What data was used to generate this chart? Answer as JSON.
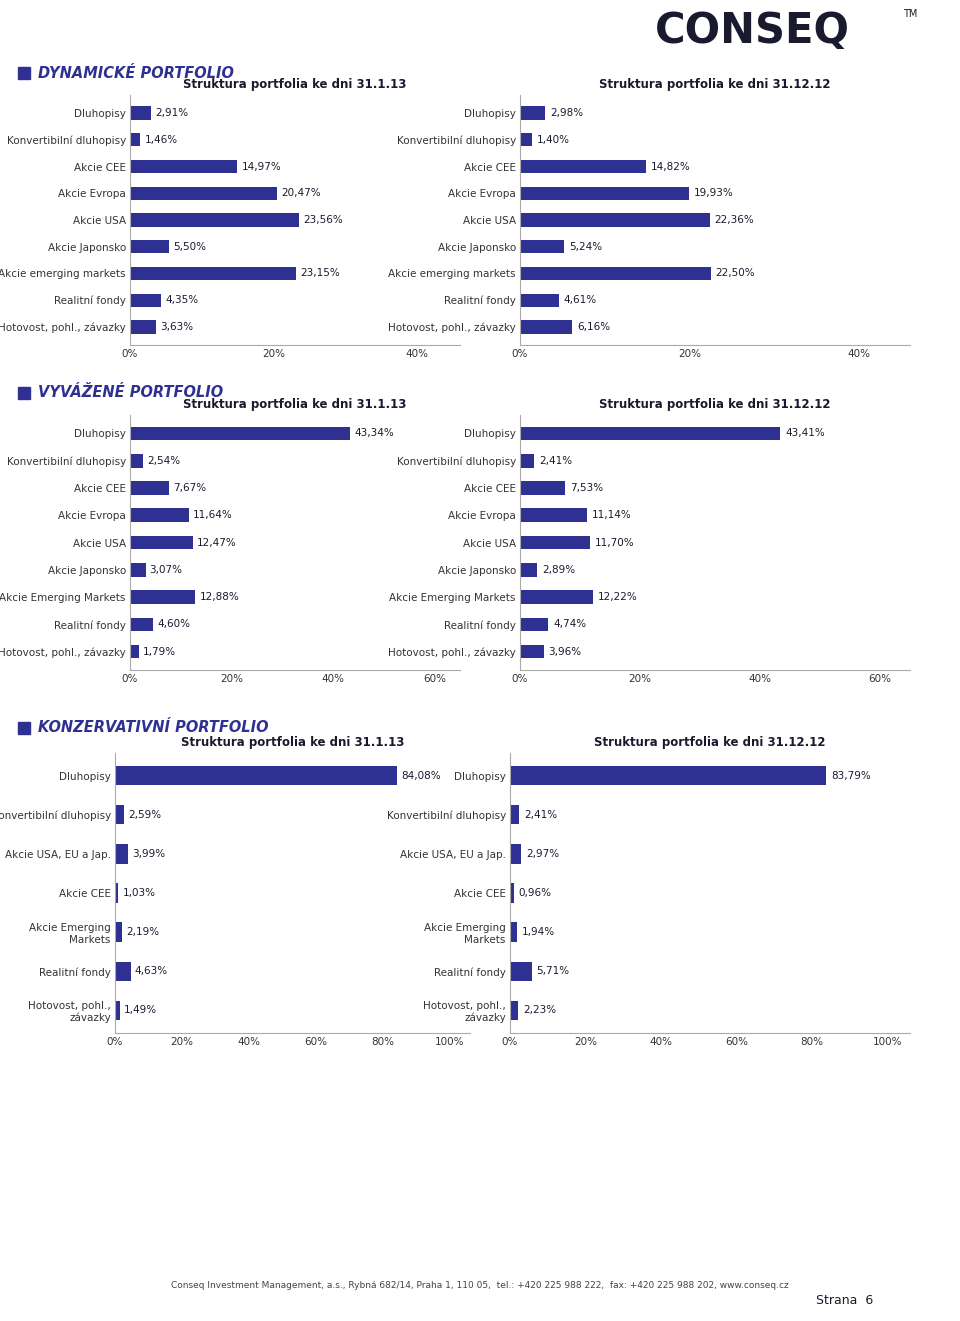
{
  "bg_color": "#ffffff",
  "header_line_color": "#e87722",
  "bar_color": "#2e3192",
  "section_bg": "#e0e0e0",
  "portfolios": [
    {
      "title": "DYNAMICKÉ PORTFOLIO",
      "chart1_title": "Struktura portfolia ke dni 31.1.13",
      "chart2_title": "Struktura portfolia ke dni 31.12.12",
      "xlim1": 46,
      "xlim2": 46,
      "xticks1": [
        0,
        20,
        40
      ],
      "xticks2": [
        0,
        20,
        40
      ],
      "labels1": [
        "Dluhopisy",
        "Konvertibilní dluhopisy",
        "Akcie CEE",
        "Akcie Evropa",
        "Akcie USA",
        "Akcie Japonsko",
        "Akcie emerging markets",
        "Realitní fondy",
        "Hotovost, pohl., závazky"
      ],
      "values1": [
        2.91,
        1.46,
        14.97,
        20.47,
        23.56,
        5.5,
        23.15,
        4.35,
        3.63
      ],
      "labels2": [
        "Dluhopisy",
        "Konvertibilní dluhopisy",
        "Akcie CEE",
        "Akcie Evropa",
        "Akcie USA",
        "Akcie Japonsko",
        "Akcie emerging markets",
        "Realitní fondy",
        "Hotovost, pohl., závazky"
      ],
      "values2": [
        2.98,
        1.4,
        14.82,
        19.93,
        22.36,
        5.24,
        22.5,
        4.61,
        6.16
      ]
    },
    {
      "title": "VYVÁŽENÉ PORTFOLIO",
      "chart1_title": "Struktura portfolia ke dni 31.1.13",
      "chart2_title": "Struktura portfolia ke dni 31.12.12",
      "xlim1": 65,
      "xlim2": 65,
      "xticks1": [
        0,
        20,
        40,
        60
      ],
      "xticks2": [
        0,
        20,
        40,
        60
      ],
      "labels1": [
        "Dluhopisy",
        "Konvertibilní dluhopisy",
        "Akcie CEE",
        "Akcie Evropa",
        "Akcie USA",
        "Akcie Japonsko",
        "Akcie Emerging Markets",
        "Realitní fondy",
        "Hotovost, pohl., závazky"
      ],
      "values1": [
        43.34,
        2.54,
        7.67,
        11.64,
        12.47,
        3.07,
        12.88,
        4.6,
        1.79
      ],
      "labels2": [
        "Dluhopisy",
        "Konvertibilní dluhopisy",
        "Akcie CEE",
        "Akcie Evropa",
        "Akcie USA",
        "Akcie Japonsko",
        "Akcie Emerging Markets",
        "Realitní fondy",
        "Hotovost, pohl., závazky"
      ],
      "values2": [
        43.41,
        2.41,
        7.53,
        11.14,
        11.7,
        2.89,
        12.22,
        4.74,
        3.96
      ]
    },
    {
      "title": "KONZERVATIVNÍ PORTFOLIO",
      "chart1_title": "Struktura portfolia ke dni 31.1.13",
      "chart2_title": "Struktura portfolia ke dni 31.12.12",
      "xlim1": 106,
      "xlim2": 106,
      "xticks1": [
        0,
        20,
        40,
        60,
        80,
        100
      ],
      "xticks2": [
        0,
        20,
        40,
        60,
        80,
        100
      ],
      "labels1": [
        "Dluhopisy",
        "Konvertibilní dluhopisy",
        "Akcie USA, EU a Jap.",
        "Akcie CEE",
        "Akcie Emerging\nMarkets",
        "Realitní fondy",
        "Hotovost, pohl.,\nzávazky"
      ],
      "values1": [
        84.08,
        2.59,
        3.99,
        1.03,
        2.19,
        4.63,
        1.49
      ],
      "labels2": [
        "Dluhopisy",
        "Konvertibilní dluhopisy",
        "Akcie USA, EU a Jap.",
        "Akcie CEE",
        "Akcie Emerging\nMarkets",
        "Realitní fondy",
        "Hotovost, pohl.,\nzávazky"
      ],
      "values2": [
        83.79,
        2.41,
        2.97,
        0.96,
        1.94,
        5.71,
        2.23
      ]
    }
  ],
  "footer_text": "Conseq Investment Management, a.s., Rybná 682/14, Praha 1, 110 05,  tel.: +420 225 988 222,  fax: +420 225 988 202, www.conseq.cz",
  "page_text": "Strana  6"
}
